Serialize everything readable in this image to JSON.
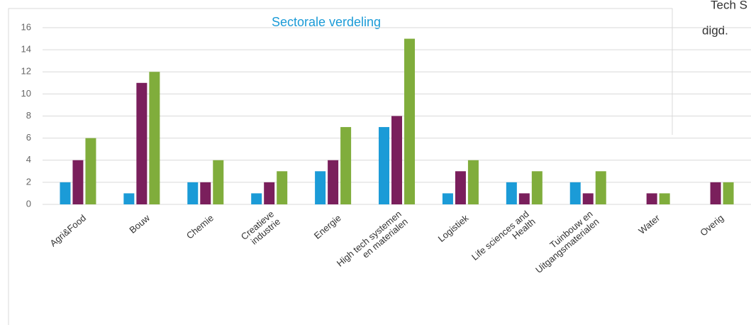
{
  "chart_data": {
    "type": "bar",
    "title": "Sectorale verdeling",
    "categories": [
      "Agri&Food",
      "Bouw",
      "Chemie",
      "Creatieve\nindustrie",
      "Energie",
      "High tech systemen\nen materialen",
      "Logistiek",
      "Life sciences and\nHealth",
      "Tuinbouw en\nUitgangsmaterialen",
      "Water",
      "Overig"
    ],
    "series": [
      {
        "color": "#1b9bd7",
        "values": [
          2,
          1,
          2,
          1,
          3,
          7,
          1,
          2,
          2,
          0,
          0
        ]
      },
      {
        "color": "#7a1f5c",
        "values": [
          4,
          11,
          2,
          2,
          4,
          8,
          3,
          1,
          1,
          1,
          2
        ]
      },
      {
        "color": "#80ad3c",
        "values": [
          6,
          12,
          4,
          3,
          7,
          15,
          4,
          3,
          3,
          1,
          2
        ]
      }
    ],
    "ylim": [
      0,
      16
    ],
    "yticks": [
      0,
      2,
      4,
      6,
      8,
      10,
      12,
      14,
      16
    ],
    "grid": true
  },
  "side_text": [
    "Tech S",
    "digd."
  ]
}
